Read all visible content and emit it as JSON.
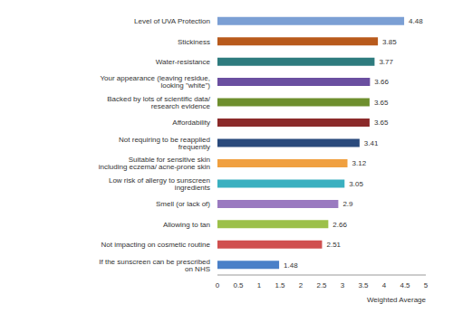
{
  "chart_data": {
    "type": "bar",
    "orientation": "horizontal",
    "categories": [
      "Level of UVA Protection",
      "Stickiness",
      "Water-resistance",
      "Your appearance (leaving residue, looking \"white\")",
      "Backed by lots of scientific data/ research evidence",
      "Affordability",
      "Not requiring to be reapplied frequently",
      "Suitable for sensitive skin including eczema/ acne-prone skin",
      "Low risk of allergy to sunscreen ingredients",
      "Smell (or lack of)",
      "Allowing to tan",
      "Not impacting on cosmetic routine",
      "If the sunscreen can be prescribed on NHS"
    ],
    "values": [
      4.48,
      3.85,
      3.77,
      3.66,
      3.65,
      3.65,
      3.41,
      3.12,
      3.05,
      2.9,
      2.66,
      2.51,
      1.48
    ],
    "colors": [
      "#7b9fd4",
      "#b85a1c",
      "#2e7b7e",
      "#6a4fa0",
      "#6e8f2e",
      "#8b2a2a",
      "#2a4a7c",
      "#f0a040",
      "#3ab0c0",
      "#9a7ac0",
      "#9cc04a",
      "#d05050",
      "#4a80c8"
    ],
    "xlabel": "Weighted Average",
    "xlim": [
      0,
      5
    ],
    "xticks": [
      0,
      0.5,
      1,
      1.5,
      2,
      2.5,
      3,
      3.5,
      4,
      4.5,
      5
    ],
    "grid": false,
    "data_labels": true
  }
}
